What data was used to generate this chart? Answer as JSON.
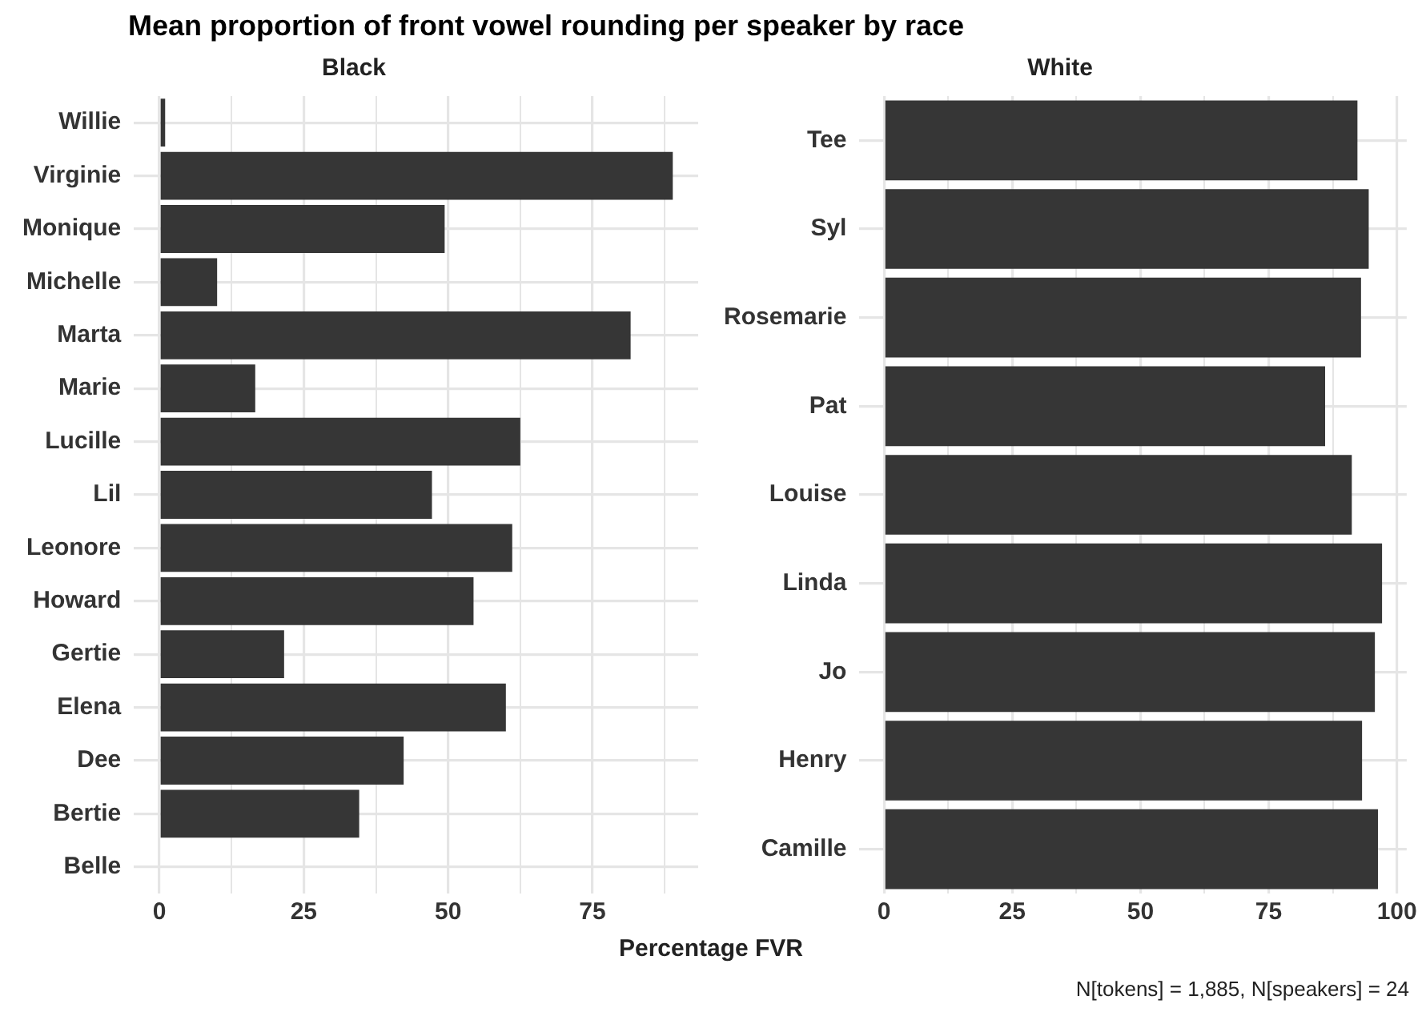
{
  "chart_data": [
    {
      "type": "bar",
      "orientation": "horizontal",
      "title": "Mean proportion of front vowel rounding per speaker by race",
      "subtitle": "Black",
      "xlabel": "Percentage FVR",
      "categories": [
        "Willie",
        "Virginie",
        "Monique",
        "Michelle",
        "Marta",
        "Marie",
        "Lucille",
        "Lil",
        "Leonore",
        "Howard",
        "Gertie",
        "Elena",
        "Dee",
        "Bertie",
        "Belle"
      ],
      "values": [
        1.0,
        88.9,
        49.4,
        10.0,
        81.6,
        16.6,
        62.5,
        47.2,
        61.1,
        54.4,
        21.6,
        60.0,
        42.3,
        34.6,
        0
      ],
      "color": "#363636",
      "xlim": [
        -4.4,
        93.3
      ],
      "xticks": [
        0,
        {
          "value": 12.5,
          "label": null
        },
        25,
        {
          "value": 37.5,
          "label": null
        },
        50,
        {
          "value": 62.5,
          "label": null
        },
        75,
        {
          "value": 87.5,
          "label": null
        }
      ],
      "grid": true,
      "legend": false
    },
    {
      "type": "bar",
      "orientation": "horizontal",
      "subtitle": "White",
      "categories": [
        "Tee",
        "Syl",
        "Rosemarie",
        "Pat",
        "Louise",
        "Linda",
        "Jo",
        "Henry",
        "Camille"
      ],
      "values": [
        92.3,
        94.5,
        93.0,
        86.0,
        91.2,
        97.1,
        95.7,
        93.2,
        96.3
      ],
      "color": "#363636",
      "xlim": [
        -4.8,
        101.9
      ],
      "xticks": [
        0,
        {
          "value": 12.5,
          "label": null
        },
        25,
        {
          "value": 37.5,
          "label": null
        },
        50,
        {
          "value": 62.5,
          "label": null
        },
        75,
        {
          "value": 87.5,
          "label": null
        },
        100
      ],
      "grid": true,
      "legend": false,
      "annotations": [
        "N[tokens] = 1,885, N[speakers] = 24"
      ]
    }
  ]
}
